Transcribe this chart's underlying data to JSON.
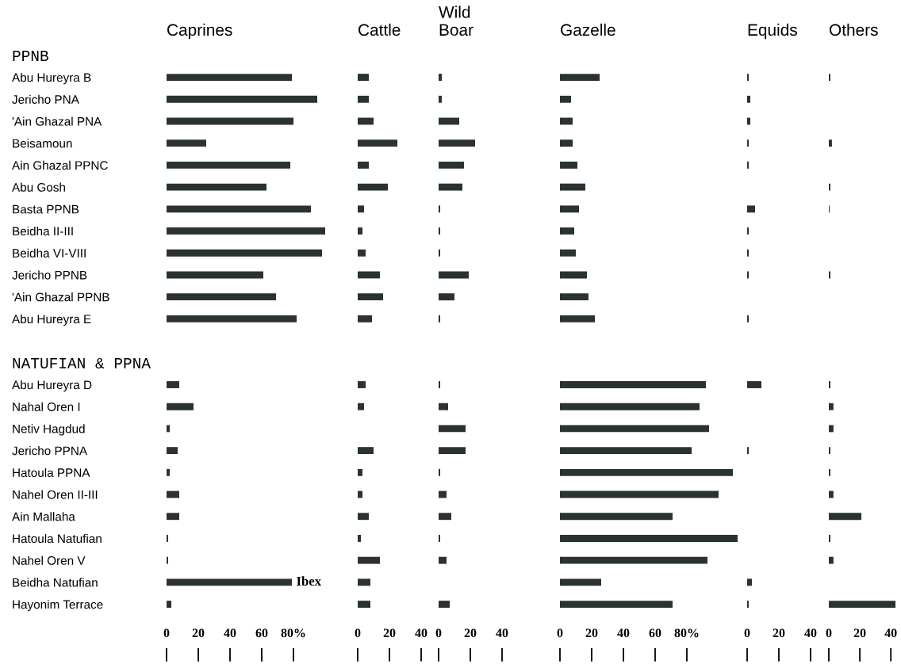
{
  "chart_data": [
    {
      "type": "bar",
      "orientation": "horizontal",
      "title": "Caprines",
      "color": "#2b3330",
      "categories": [
        "PPNB",
        "Abu Hureyra B",
        "Jericho PNA",
        "'Ain Ghazal PNA",
        "Beisamoun",
        "Ain Ghazal PPNC",
        "Abu Gosh",
        "Basta PPNB",
        "Beidha II-III",
        "Beidha VI-VIII",
        "Jericho PPNB",
        "'Ain Ghazal PPNB",
        "Abu Hureyra E",
        null,
        "NATUFIAN & PPNA",
        "Abu Hureyra D",
        "Nahal Oren I",
        "Netiv Hagdud",
        "Jericho PPNA",
        "Hatoula PPNA",
        "Nahel Oren II-III",
        "Ain Mallaha",
        "Hatoula Natufian",
        "Nahel Oren V",
        "Beidha Natufian",
        "Hayonim Terrace"
      ],
      "values": [
        null,
        79,
        95,
        80,
        25,
        78,
        63,
        91,
        100,
        98,
        61,
        69,
        82,
        null,
        null,
        8,
        17,
        2,
        7,
        2,
        8,
        8,
        1,
        1,
        79,
        3
      ],
      "xlim": [
        0,
        102
      ],
      "xticks": [
        0,
        20,
        40,
        60,
        {
          "value": 80,
          "label": "80%"
        }
      ],
      "annotations": [
        {
          "text": "Ibex",
          "x": 79,
          "y": "Beidha Natufian"
        }
      ]
    },
    {
      "type": "bar",
      "orientation": "horizontal",
      "title": "Cattle",
      "color": "#2b3330",
      "tick_labels": "x",
      "categories": [
        "PPNB",
        "Abu Hureyra B",
        "Jericho PNA",
        "'Ain Ghazal PNA",
        "Beisamoun",
        "Ain Ghazal PPNC",
        "Abu Gosh",
        "Basta PPNB",
        "Beidha II-III",
        "Beidha VI-VIII",
        "Jericho PPNB",
        "'Ain Ghazal PPNB",
        "Abu Hureyra E",
        null,
        "NATUFIAN & PPNA",
        "Abu Hureyra D",
        "Nahal Oren I",
        "Netiv Hagdud",
        "Jericho PPNA",
        "Hatoula PPNA",
        "Nahel Oren II-III",
        "Ain Mallaha",
        "Hatoula Natufian",
        "Nahel Oren V",
        "Beidha Natufian",
        "Hayonim Terrace"
      ],
      "values": [
        null,
        7,
        7,
        10,
        25,
        7,
        19,
        4,
        3,
        5,
        14,
        16,
        9,
        null,
        null,
        5,
        4,
        0,
        10,
        3,
        3,
        7,
        2,
        14,
        8,
        8
      ],
      "xlim": [
        0,
        40
      ],
      "xticks": [
        0,
        20,
        40
      ]
    },
    {
      "type": "bar",
      "orientation": "horizontal",
      "title": "Wild\nBoar",
      "color": "#2b3330",
      "tick_labels": "x",
      "categories": [
        "PPNB",
        "Abu Hureyra B",
        "Jericho PNA",
        "'Ain Ghazal PNA",
        "Beisamoun",
        "Ain Ghazal PPNC",
        "Abu Gosh",
        "Basta PPNB",
        "Beidha II-III",
        "Beidha VI-VIII",
        "Jericho PPNB",
        "'Ain Ghazal PPNB",
        "Abu Hureyra E",
        null,
        "NATUFIAN & PPNA",
        "Abu Hureyra D",
        "Nahal Oren I",
        "Netiv Hagdud",
        "Jericho PPNA",
        "Hatoula PPNA",
        "Nahel Oren II-III",
        "Ain Mallaha",
        "Hatoula Natufian",
        "Nahel Oren V",
        "Beidha Natufian",
        "Hayonim Terrace"
      ],
      "values": [
        null,
        2,
        2,
        13,
        23,
        16,
        15,
        1,
        1,
        1,
        19,
        10,
        1,
        null,
        null,
        1,
        6,
        17,
        17,
        1,
        5,
        8,
        1,
        5,
        0,
        7
      ],
      "xlim": [
        0,
        40
      ],
      "xticks": [
        0,
        20,
        40
      ]
    },
    {
      "type": "bar",
      "orientation": "horizontal",
      "title": "Gazelle",
      "color": "#2b3330",
      "tick_labels": "x",
      "categories": [
        "PPNB",
        "Abu Hureyra B",
        "Jericho PNA",
        "'Ain Ghazal PNA",
        "Beisamoun",
        "Ain Ghazal PPNC",
        "Abu Gosh",
        "Basta PPNB",
        "Beidha II-III",
        "Beidha VI-VIII",
        "Jericho PPNB",
        "'Ain Ghazal PPNB",
        "Abu Hureyra E",
        null,
        "NATUFIAN & PPNA",
        "Abu Hureyra D",
        "Nahal Oren I",
        "Netiv Hagdud",
        "Jericho PPNA",
        "Hatoula PPNA",
        "Nahel Oren II-III",
        "Ain Mallaha",
        "Hatoula Natufian",
        "Nahel Oren V",
        "Beidha Natufian",
        "Hayonim Terrace"
      ],
      "values": [
        null,
        25,
        7,
        8,
        8,
        11,
        16,
        12,
        9,
        10,
        17,
        18,
        22,
        null,
        null,
        92,
        88,
        94,
        83,
        109,
        100,
        71,
        112,
        93,
        26,
        71
      ],
      "xlim": [
        0,
        113
      ],
      "xticks": [
        0,
        20,
        40,
        60,
        {
          "value": 80,
          "label": "80%"
        }
      ]
    },
    {
      "type": "bar",
      "orientation": "horizontal",
      "title": "Equids",
      "color": "#2b3330",
      "tick_labels": "x",
      "categories": [
        "PPNB",
        "Abu Hureyra B",
        "Jericho PNA",
        "'Ain Ghazal PNA",
        "Beisamoun",
        "Ain Ghazal PPNC",
        "Abu Gosh",
        "Basta PPNB",
        "Beidha II-III",
        "Beidha VI-VIII",
        "Jericho PPNB",
        "'Ain Ghazal PPNB",
        "Abu Hureyra E",
        null,
        "NATUFIAN & PPNA",
        "Abu Hureyra D",
        "Nahal Oren I",
        "Netiv Hagdud",
        "Jericho PPNA",
        "Hatoula PPNA",
        "Nahel Oren II-III",
        "Ain Mallaha",
        "Hatoula Natufian",
        "Nahel Oren V",
        "Beidha Natufian",
        "Hayonim Terrace"
      ],
      "values": [
        null,
        1,
        2,
        2,
        1,
        1,
        0,
        5,
        1,
        1,
        1,
        0,
        1,
        null,
        null,
        9,
        0,
        0,
        1,
        0,
        0,
        0,
        0,
        0,
        3,
        1
      ],
      "xlim": [
        0,
        40
      ],
      "xticks": [
        0,
        20,
        40
      ]
    },
    {
      "type": "bar",
      "orientation": "horizontal",
      "title": "Others",
      "color": "#2b3330",
      "tick_labels": "x",
      "categories": [
        "PPNB",
        "Abu Hureyra B",
        "Jericho PNA",
        "'Ain Ghazal PNA",
        "Beisamoun",
        "Ain Ghazal PPNC",
        "Abu Gosh",
        "Basta PPNB",
        "Beidha II-III",
        "Beidha VI-VIII",
        "Jericho PPNB",
        "'Ain Ghazal PPNB",
        "Abu Hureyra E",
        null,
        "NATUFIAN & PPNA",
        "Abu Hureyra D",
        "Nahal Oren I",
        "Netiv Hagdud",
        "Jericho PPNA",
        "Hatoula PPNA",
        "Nahel Oren II-III",
        "Ain Mallaha",
        "Hatoula Natufian",
        "Nahel Oren V",
        "Beidha Natufian",
        "Hayonim Terrace"
      ],
      "values": [
        null,
        1,
        0,
        0,
        2,
        0,
        1,
        0.5,
        0,
        0,
        1,
        0,
        0,
        null,
        null,
        1,
        3,
        3,
        1,
        1,
        3,
        21,
        1,
        3,
        0,
        43
      ],
      "xlim": [
        0,
        44
      ],
      "xticks": [
        0,
        20,
        40
      ]
    }
  ]
}
